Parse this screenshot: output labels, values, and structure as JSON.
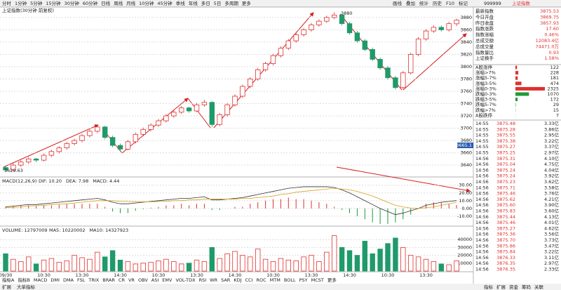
{
  "toolbar": {
    "periods": [
      "分时",
      "1分钟",
      "5分钟",
      "15分钟",
      "30分钟",
      "60分钟",
      "日线",
      "周线",
      "月线",
      "10分钟",
      "45分钟",
      "季线",
      "年线",
      "多日",
      "5日",
      "多周期",
      "更多"
    ],
    "tools": [
      "画线",
      "叠加",
      "统计",
      "历史",
      "F10",
      "标记"
    ]
  },
  "chart_data": [
    {
      "type": "candlestick",
      "title": "上证指数(30分钟 前复权)",
      "up_color": "#e0302f",
      "down_color": "#1f9a6a",
      "categories": [
        "09/30",
        null,
        null,
        null,
        null,
        "10:30",
        null,
        null,
        null,
        null,
        "13:30",
        null,
        null,
        null,
        null,
        "14:30",
        null,
        null,
        null,
        null,
        "10:30",
        null,
        null,
        null,
        null,
        "13:30",
        null,
        null,
        null,
        null,
        "14:30",
        null,
        null,
        null,
        null,
        "10:30",
        null,
        null,
        null,
        null,
        "13:30",
        null,
        null,
        null,
        null,
        "14:30",
        null,
        null,
        null,
        null,
        "10:30",
        null,
        null,
        null,
        null,
        "13:30",
        null,
        null,
        null,
        null
      ],
      "candles": [
        [
          3636,
          3638,
          3629.63,
          3632
        ],
        [
          3632,
          3643,
          3630,
          3640
        ],
        [
          3640,
          3648,
          3637,
          3645
        ],
        [
          3645,
          3653,
          3642,
          3650
        ],
        [
          3650,
          3652,
          3645,
          3648
        ],
        [
          3648,
          3659,
          3646,
          3656
        ],
        [
          3656,
          3665,
          3653,
          3662
        ],
        [
          3662,
          3671,
          3659,
          3668
        ],
        [
          3668,
          3678,
          3665,
          3675
        ],
        [
          3675,
          3683,
          3672,
          3680
        ],
        [
          3680,
          3691,
          3677,
          3688
        ],
        [
          3688,
          3698,
          3685,
          3695
        ],
        [
          3695,
          3705,
          3692,
          3702
        ],
        [
          3702,
          3704,
          3682,
          3685
        ],
        [
          3685,
          3688,
          3669,
          3672
        ],
        [
          3672,
          3675,
          3662,
          3666
        ],
        [
          3666,
          3681,
          3664,
          3678
        ],
        [
          3678,
          3693,
          3675,
          3690
        ],
        [
          3690,
          3701,
          3687,
          3698
        ],
        [
          3698,
          3708,
          3695,
          3705
        ],
        [
          3705,
          3715,
          3702,
          3712
        ],
        [
          3712,
          3723,
          3709,
          3720
        ],
        [
          3720,
          3729,
          3717,
          3726
        ],
        [
          3726,
          3736,
          3723,
          3733
        ],
        [
          3733,
          3735,
          3725,
          3728
        ],
        [
          3728,
          3741,
          3726,
          3738
        ],
        [
          3738,
          3746,
          3735,
          3742
        ],
        [
          3742,
          3744,
          3702,
          3706
        ],
        [
          3706,
          3725,
          3703,
          3722
        ],
        [
          3722,
          3741,
          3719,
          3738
        ],
        [
          3738,
          3755,
          3735,
          3752
        ],
        [
          3752,
          3771,
          3749,
          3768
        ],
        [
          3768,
          3783,
          3765,
          3780
        ],
        [
          3780,
          3798,
          3777,
          3795
        ],
        [
          3795,
          3808,
          3792,
          3805
        ],
        [
          3805,
          3821,
          3802,
          3818
        ],
        [
          3818,
          3833,
          3815,
          3830
        ],
        [
          3830,
          3845,
          3827,
          3842
        ],
        [
          3842,
          3855,
          3839,
          3852
        ],
        [
          3852,
          3863,
          3849,
          3860
        ],
        [
          3860,
          3871,
          3857,
          3868
        ],
        [
          3868,
          3877,
          3865,
          3874
        ],
        [
          3874,
          3883,
          3871,
          3880
        ],
        [
          3880,
          3888.6,
          3877,
          3884
        ],
        [
          3884,
          3886,
          3867,
          3870
        ],
        [
          3870,
          3873,
          3852,
          3855
        ],
        [
          3855,
          3858,
          3839,
          3842
        ],
        [
          3842,
          3845,
          3825,
          3828
        ],
        [
          3828,
          3831,
          3809,
          3812
        ],
        [
          3812,
          3815,
          3795,
          3798
        ],
        [
          3798,
          3801,
          3779,
          3782
        ],
        [
          3782,
          3785,
          3763,
          3766
        ],
        [
          3766,
          3793,
          3763,
          3790
        ],
        [
          3790,
          3823,
          3787,
          3820
        ],
        [
          3820,
          3848,
          3817,
          3845
        ],
        [
          3845,
          3861,
          3842,
          3858
        ],
        [
          3858,
          3867,
          3855,
          3864
        ],
        [
          3864,
          3867,
          3857,
          3860
        ],
        [
          3860,
          3873,
          3857,
          3870
        ],
        [
          3869.75,
          3878,
          3866,
          3875.53
        ]
      ],
      "ylim": [
        3623,
        3897
      ],
      "yticks": [
        3880,
        3860,
        3840,
        3820,
        3800,
        3780,
        3760,
        3740,
        3720,
        3700,
        3680,
        3660,
        3640
      ],
      "grid": true,
      "annotations": [
        "3880",
        "3629.63",
        "3665.1"
      ]
    },
    {
      "type": "macd",
      "title": "MACD(12,26,9)",
      "readout": [
        "DIF: 10.20",
        "DEA: 7.98",
        "MACD: 4.44"
      ],
      "series": [
        {
          "name": "DIF",
          "color": "#333333",
          "values": [
            2,
            3,
            4,
            5,
            5,
            6,
            7,
            8,
            9,
            10,
            11,
            12,
            13,
            11,
            8,
            6,
            6,
            7,
            8,
            9,
            10,
            11,
            12,
            13,
            13,
            14,
            15,
            11,
            11,
            12,
            13,
            14,
            16,
            18,
            20,
            22,
            24,
            26,
            27,
            28,
            28,
            28,
            28,
            27,
            24,
            20,
            15,
            10,
            5,
            0,
            -4,
            -8,
            -6,
            -3,
            0,
            4,
            6,
            8,
            9,
            10.2
          ]
        },
        {
          "name": "DEA",
          "color": "#d4a017",
          "values": [
            1,
            1.5,
            2,
            3,
            3.5,
            4,
            5,
            5.5,
            6,
            7,
            8,
            9,
            10,
            10,
            10,
            9,
            9,
            8.5,
            8.5,
            8.5,
            9,
            9,
            10,
            10,
            11,
            11,
            12,
            12,
            12,
            12,
            12,
            13,
            13,
            14,
            15,
            16,
            18,
            19,
            21,
            22,
            23,
            24,
            25,
            26,
            25,
            24,
            22,
            19,
            16,
            12,
            8,
            4,
            2,
            0.5,
            0,
            1,
            2,
            4,
            6,
            7.98
          ]
        }
      ],
      "histogram": [
        2,
        3,
        4,
        4,
        3,
        4,
        4,
        5,
        6,
        6,
        6,
        6,
        6,
        2,
        -4,
        -6,
        -6,
        -3,
        -1,
        1,
        2,
        4,
        4,
        6,
        4,
        6,
        6,
        -2,
        -2,
        0,
        2,
        2,
        6,
        8,
        10,
        12,
        12,
        14,
        12,
        12,
        10,
        8,
        6,
        2,
        -2,
        -6,
        -10,
        -14,
        -18,
        -20,
        -20,
        -18,
        -14,
        -8,
        0,
        6,
        8,
        8,
        6,
        4.44
      ],
      "ylim": [
        -21,
        37
      ],
      "yticks": [
        {
          "value": 30,
          "label": "30.00"
        },
        {
          "value": 20,
          "label": "20.00"
        },
        {
          "value": 10,
          "label": "10.00"
        },
        {
          "value": 0,
          "label": "0.00"
        },
        {
          "value": -10,
          "label": "-10.00"
        }
      ]
    },
    {
      "type": "bar",
      "title": "VOLUME: 12797009",
      "readout": [
        "MA5: 10220002",
        "MA10: 14327923"
      ],
      "values": [
        22000,
        15000,
        12000,
        18000,
        9000,
        14000,
        16000,
        11000,
        13000,
        20000,
        17000,
        15000,
        24000,
        18000,
        26000,
        14000,
        12000,
        9000,
        10000,
        11000,
        13000,
        15000,
        12000,
        9000,
        10000,
        14000,
        12000,
        30000,
        16000,
        22000,
        25000,
        20000,
        18000,
        28000,
        15000,
        12000,
        16000,
        14000,
        13000,
        18000,
        20000,
        12000,
        24000,
        45000,
        30000,
        26000,
        20000,
        38000,
        22000,
        28000,
        35000,
        42000,
        30000,
        20000,
        18000,
        15000,
        12000,
        9000,
        8000,
        13000
      ],
      "ylim": [
        0,
        50000
      ],
      "yticks": [
        40000,
        30000,
        20000,
        10000
      ]
    }
  ],
  "quote": {
    "code": "999999",
    "name": "上证指数",
    "rows": [
      [
        "最新指数",
        "3875.53"
      ],
      [
        "今日开盘",
        "3869.75"
      ],
      [
        "昨日收盘",
        "3857.93"
      ],
      [
        "指数涨跌",
        "17.60"
      ],
      [
        "指数涨幅",
        "0.46%"
      ],
      [
        "总成交额",
        "12083.4亿"
      ],
      [
        "总成交量",
        "74471.0万"
      ],
      [
        "指数量比",
        "0.93"
      ],
      [
        "上证换手",
        "1.58%"
      ]
    ]
  },
  "breadth": [
    {
      "label": "A股涨停",
      "value": 122,
      "color": "#e0302f"
    },
    {
      "label": "涨幅>7%",
      "value": 228,
      "color": "#e0302f"
    },
    {
      "label": "涨幅5-7%",
      "value": 181,
      "color": "#e0302f"
    },
    {
      "label": "涨幅3-5%",
      "value": 474,
      "color": "#e0302f"
    },
    {
      "label": "涨幅0-3%",
      "value": 2325,
      "color": "#e0302f"
    },
    {
      "label": "跌幅0-3%",
      "value": 1070,
      "color": "#1f9a3a"
    },
    {
      "label": "跌幅3-5%",
      "value": 172,
      "color": "#1f9a3a"
    },
    {
      "label": "跌幅5-7%",
      "value": 29,
      "color": "#1f9a3a"
    },
    {
      "label": "跌幅>7%",
      "value": 15,
      "color": "#1f9a3a"
    },
    {
      "label": "A股跌停",
      "value": 7,
      "color": "#1f9a3a"
    }
  ],
  "ticks": [
    [
      "14:55",
      "3875.48",
      "3.33亿"
    ],
    [
      "14:55",
      "3875.28",
      "3.86亿"
    ],
    [
      "14:55",
      "3875.55",
      "2.95亿"
    ],
    [
      "14:55",
      "3875.38",
      "3.22亿"
    ],
    [
      "14:55",
      "3875.27",
      "3.37亿"
    ],
    [
      "14:55",
      "3875.25",
      "2.97亿"
    ],
    [
      "14:56",
      "3875.31",
      "4.10亿"
    ],
    [
      "14:56",
      "3875.04",
      "4.75亿"
    ],
    [
      "14:56",
      "3875.24",
      "4.04亿"
    ],
    [
      "14:56",
      "3875.24",
      "3.92亿"
    ],
    [
      "14:56",
      "3875.23",
      "3.62亿"
    ],
    [
      "14:56",
      "3875.71",
      "3.58亿"
    ],
    [
      "14:56",
      "3875.46",
      "3.76亿"
    ],
    [
      "14:56",
      "3875.62",
      "4.21亿"
    ],
    [
      "14:56",
      "3875.60",
      "3.90亿"
    ],
    [
      "14:56",
      "3875.83",
      "3.60亿"
    ],
    [
      "14:56",
      "3875.44",
      "4.13亿"
    ],
    [
      "14:56",
      "3875.46",
      "4.01亿"
    ],
    [
      "14:56",
      "3875.27",
      "4.62亿"
    ],
    [
      "14:56",
      "3875.36",
      "3.56亿"
    ],
    [
      "14:56",
      "3875.70",
      "3.73亿"
    ],
    [
      "14:56",
      "3875.86",
      "3.47亿"
    ],
    [
      "14:56",
      "3875.84",
      "3.22亿"
    ],
    [
      "14:56",
      "3876.33",
      "3.11亿"
    ],
    [
      "14:56",
      "3876.35",
      "2.97亿"
    ],
    [
      "14:56",
      "3876.35",
      "2.33亿"
    ]
  ],
  "indicators": [
    "指标A",
    "指标B",
    "MACD",
    "DMI",
    "DMA",
    "FSL",
    "TRIX",
    "BRAR",
    "CR",
    "VR",
    "OBV",
    "ASI",
    "EMV",
    "VOL-TDX",
    "RSI",
    "WR",
    "SAR",
    "KDJ",
    "CCI",
    "ROC",
    "MTM",
    "BOLL",
    "PSY",
    "MCST",
    "更多"
  ],
  "footer": {
    "left": [
      "扩展",
      "大单指标"
    ],
    "right": [
      "指标",
      "扩展",
      "资金",
      "筹码",
      "关联"
    ]
  }
}
